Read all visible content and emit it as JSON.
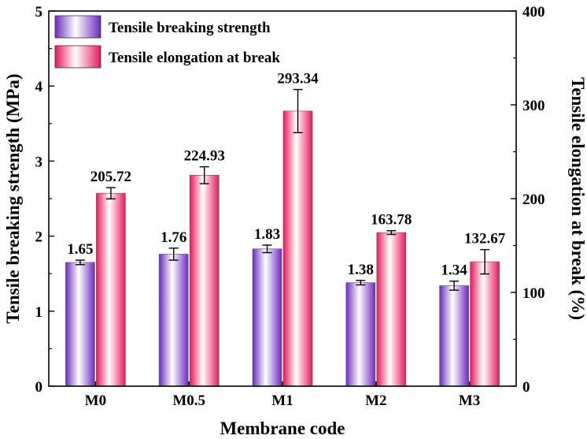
{
  "chart_data": {
    "type": "bar",
    "xlabel": "Membrane code",
    "ylabel": "Tensile breaking strength (MPa)",
    "y2label": "Tensile elongation at break (%)",
    "categories": [
      "M0",
      "M0.5",
      "M1",
      "M2",
      "M3"
    ],
    "ylim": [
      0,
      5
    ],
    "y2lim": [
      0,
      400
    ],
    "yticks": [
      "0",
      "1",
      "2",
      "3",
      "4",
      "5"
    ],
    "y2ticks": [
      "0",
      "100",
      "200",
      "300",
      "400"
    ],
    "grid": false,
    "legend_position": "top-left",
    "series": [
      {
        "name": "Tensile breaking strength",
        "axis": "left",
        "values": [
          1.65,
          1.76,
          1.83,
          1.38,
          1.34
        ],
        "errors": [
          0.03,
          0.08,
          0.05,
          0.03,
          0.06
        ],
        "labels": [
          "1.65",
          "1.76",
          "1.83",
          "1.38",
          "1.34"
        ],
        "color": "#7a3fc4"
      },
      {
        "name": "Tensile elongation at break",
        "axis": "right",
        "values": [
          205.72,
          224.93,
          293.34,
          163.78,
          132.67
        ],
        "errors": [
          6,
          9,
          23,
          2,
          13
        ],
        "labels": [
          "205.72",
          "224.93",
          "293.34",
          "163.78",
          "132.67"
        ],
        "color": "#e0245e"
      }
    ]
  }
}
